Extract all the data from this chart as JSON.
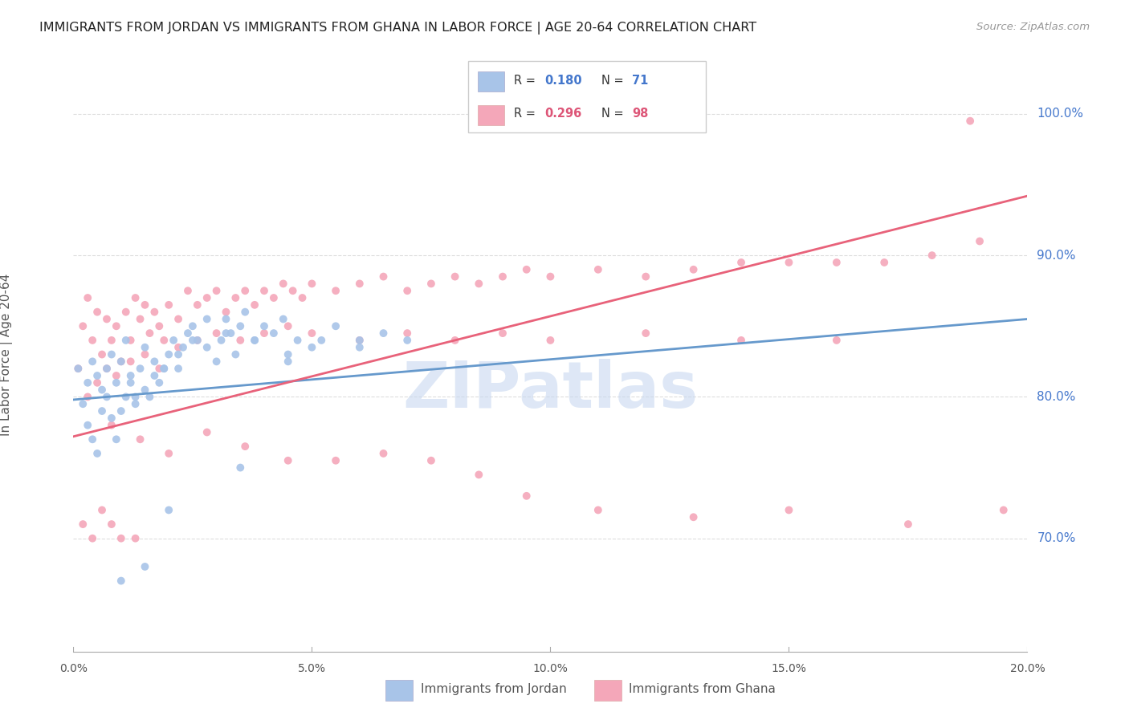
{
  "title": "IMMIGRANTS FROM JORDAN VS IMMIGRANTS FROM GHANA IN LABOR FORCE | AGE 20-64 CORRELATION CHART",
  "source": "Source: ZipAtlas.com",
  "ylabel_label": "In Labor Force | Age 20-64",
  "legend_label1": "Immigrants from Jordan",
  "legend_label2": "Immigrants from Ghana",
  "R1": "0.180",
  "N1": "71",
  "R2": "0.296",
  "N2": "98",
  "color_jordan": "#a8c4e8",
  "color_ghana": "#f4a7b9",
  "color_jordan_line": "#6699cc",
  "color_ghana_line": "#e8627a",
  "color_blue_text": "#4477cc",
  "color_red_text": "#dd5577",
  "watermark_color": "#c8d8f0",
  "background_color": "#ffffff",
  "grid_color": "#dddddd",
  "x_min": 0.0,
  "x_max": 0.2,
  "y_min": 0.62,
  "y_max": 1.04,
  "jordan_x": [
    0.001,
    0.002,
    0.003,
    0.004,
    0.005,
    0.006,
    0.007,
    0.008,
    0.009,
    0.01,
    0.011,
    0.012,
    0.013,
    0.014,
    0.015,
    0.016,
    0.017,
    0.018,
    0.019,
    0.02,
    0.021,
    0.022,
    0.023,
    0.024,
    0.025,
    0.026,
    0.028,
    0.03,
    0.031,
    0.032,
    0.033,
    0.034,
    0.035,
    0.036,
    0.038,
    0.04,
    0.042,
    0.044,
    0.045,
    0.047,
    0.05,
    0.055,
    0.06,
    0.065,
    0.07,
    0.003,
    0.004,
    0.005,
    0.006,
    0.007,
    0.008,
    0.009,
    0.01,
    0.011,
    0.012,
    0.013,
    0.015,
    0.017,
    0.019,
    0.022,
    0.025,
    0.028,
    0.032,
    0.038,
    0.045,
    0.052,
    0.06,
    0.035,
    0.02,
    0.015,
    0.01
  ],
  "jordan_y": [
    0.82,
    0.795,
    0.81,
    0.825,
    0.815,
    0.805,
    0.82,
    0.83,
    0.81,
    0.825,
    0.84,
    0.815,
    0.8,
    0.82,
    0.835,
    0.8,
    0.825,
    0.81,
    0.82,
    0.83,
    0.84,
    0.82,
    0.835,
    0.845,
    0.85,
    0.84,
    0.855,
    0.825,
    0.84,
    0.855,
    0.845,
    0.83,
    0.85,
    0.86,
    0.84,
    0.85,
    0.845,
    0.855,
    0.825,
    0.84,
    0.835,
    0.85,
    0.835,
    0.845,
    0.84,
    0.78,
    0.77,
    0.76,
    0.79,
    0.8,
    0.785,
    0.77,
    0.79,
    0.8,
    0.81,
    0.795,
    0.805,
    0.815,
    0.82,
    0.83,
    0.84,
    0.835,
    0.845,
    0.84,
    0.83,
    0.84,
    0.84,
    0.75,
    0.72,
    0.68,
    0.67
  ],
  "ghana_x": [
    0.001,
    0.002,
    0.003,
    0.004,
    0.005,
    0.006,
    0.007,
    0.008,
    0.009,
    0.01,
    0.011,
    0.012,
    0.013,
    0.014,
    0.015,
    0.016,
    0.017,
    0.018,
    0.019,
    0.02,
    0.022,
    0.024,
    0.026,
    0.028,
    0.03,
    0.032,
    0.034,
    0.036,
    0.038,
    0.04,
    0.042,
    0.044,
    0.046,
    0.048,
    0.05,
    0.055,
    0.06,
    0.065,
    0.07,
    0.075,
    0.08,
    0.085,
    0.09,
    0.095,
    0.1,
    0.11,
    0.12,
    0.13,
    0.14,
    0.15,
    0.16,
    0.17,
    0.18,
    0.19,
    0.003,
    0.005,
    0.007,
    0.009,
    0.012,
    0.015,
    0.018,
    0.022,
    0.026,
    0.03,
    0.035,
    0.04,
    0.045,
    0.05,
    0.06,
    0.07,
    0.08,
    0.09,
    0.1,
    0.12,
    0.14,
    0.16,
    0.008,
    0.014,
    0.02,
    0.028,
    0.036,
    0.045,
    0.055,
    0.065,
    0.075,
    0.085,
    0.095,
    0.11,
    0.13,
    0.15,
    0.175,
    0.195,
    0.002,
    0.004,
    0.006,
    0.008,
    0.01,
    0.013
  ],
  "ghana_y": [
    0.82,
    0.85,
    0.87,
    0.84,
    0.86,
    0.83,
    0.855,
    0.84,
    0.85,
    0.825,
    0.86,
    0.84,
    0.87,
    0.855,
    0.865,
    0.845,
    0.86,
    0.85,
    0.84,
    0.865,
    0.855,
    0.875,
    0.865,
    0.87,
    0.875,
    0.86,
    0.87,
    0.875,
    0.865,
    0.875,
    0.87,
    0.88,
    0.875,
    0.87,
    0.88,
    0.875,
    0.88,
    0.885,
    0.875,
    0.88,
    0.885,
    0.88,
    0.885,
    0.89,
    0.885,
    0.89,
    0.885,
    0.89,
    0.895,
    0.895,
    0.895,
    0.895,
    0.9,
    0.91,
    0.8,
    0.81,
    0.82,
    0.815,
    0.825,
    0.83,
    0.82,
    0.835,
    0.84,
    0.845,
    0.84,
    0.845,
    0.85,
    0.845,
    0.84,
    0.845,
    0.84,
    0.845,
    0.84,
    0.845,
    0.84,
    0.84,
    0.78,
    0.77,
    0.76,
    0.775,
    0.765,
    0.755,
    0.755,
    0.76,
    0.755,
    0.745,
    0.73,
    0.72,
    0.715,
    0.72,
    0.71,
    0.72,
    0.71,
    0.7,
    0.72,
    0.71,
    0.7,
    0.7
  ],
  "ghana_outlier_x": [
    0.188
  ],
  "ghana_outlier_y": [
    0.995
  ],
  "jordan_line_x": [
    0.0,
    0.2
  ],
  "jordan_line_y": [
    0.798,
    0.855
  ],
  "ghana_line_x": [
    0.0,
    0.2
  ],
  "ghana_line_y": [
    0.772,
    0.942
  ],
  "ytick_vals": [
    0.7,
    0.8,
    0.9,
    1.0
  ],
  "ytick_labels": [
    "70.0%",
    "80.0%",
    "90.0%",
    "100.0%"
  ],
  "xtick_vals": [
    0.0,
    0.05,
    0.1,
    0.15,
    0.2
  ],
  "xtick_labels": [
    "0.0%",
    "5.0%",
    "10.0%",
    "15.0%",
    "20.0%"
  ]
}
